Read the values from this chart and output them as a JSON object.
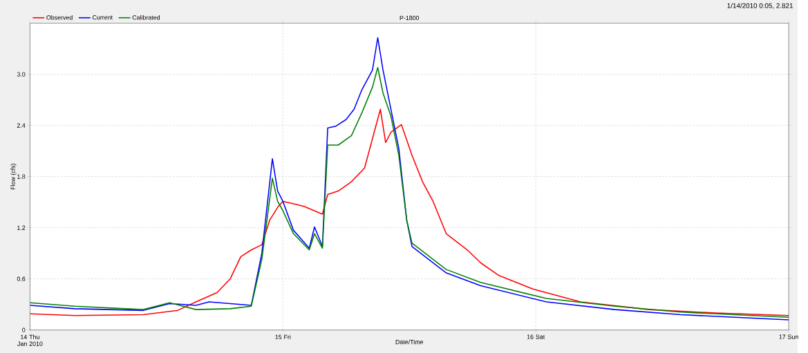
{
  "chart_data": {
    "type": "line",
    "title": "P-1800",
    "xlabel": "Date/Time",
    "ylabel": "Flow (cfs)",
    "annotations": [
      "1/14/2010 0:05, 2.821"
    ],
    "xlim": [
      "2010-01-14",
      "2010-01-17"
    ],
    "xticks": [
      {
        "value": "2010-01-14",
        "label": "14 Thu Jan 2010"
      },
      {
        "value": "2010-01-15",
        "label": "15 Fri"
      },
      {
        "value": "2010-01-16",
        "label": "16 Sat"
      },
      {
        "value": "2010-01-17",
        "label": "17 Sun"
      }
    ],
    "ylim": [
      0,
      3.6
    ],
    "yticks": [
      0,
      0.6,
      1.2,
      1.8,
      2.4,
      {
        "value": 3,
        "label": "3.0"
      }
    ],
    "grid": true,
    "legend": "top left",
    "marker": "none",
    "line_style": "solid",
    "series": [
      {
        "name": "Observed",
        "color": "#ff0000",
        "x": [
          "2010-01-14T00:00",
          "2010-01-14T04:15",
          "2010-01-14T10:45",
          "2010-01-14T14:00",
          "2010-01-14T15:45",
          "2010-01-14T17:45",
          "2010-01-14T19:00",
          "2010-01-14T20:00",
          "2010-01-14T21:00",
          "2010-01-14T22:00",
          "2010-01-14T22:45",
          "2010-01-14T23:30",
          "2010-01-15T00:00",
          "2010-01-15T00:45",
          "2010-01-15T02:00",
          "2010-01-15T03:45",
          "2010-01-15T04:15",
          "2010-01-15T05:15",
          "2010-01-15T06:30",
          "2010-01-15T07:45",
          "2010-01-15T08:45",
          "2010-01-15T09:15",
          "2010-01-15T09:45",
          "2010-01-15T10:15",
          "2010-01-15T11:15",
          "2010-01-15T12:15",
          "2010-01-15T13:15",
          "2010-01-15T14:15",
          "2010-01-15T15:30",
          "2010-01-15T17:30",
          "2010-01-15T18:45",
          "2010-01-15T20:30",
          "2010-01-15T23:45",
          "2010-01-16T04:15",
          "2010-01-16T10:45",
          "2010-01-16T17:00",
          "2010-01-17T00:00"
        ],
        "values": [
          0.19,
          0.17,
          0.18,
          0.23,
          0.33,
          0.44,
          0.6,
          0.86,
          0.94,
          1.0,
          1.29,
          1.44,
          1.51,
          1.49,
          1.45,
          1.36,
          1.59,
          1.63,
          1.74,
          1.9,
          2.36,
          2.59,
          2.2,
          2.32,
          2.41,
          2.05,
          1.74,
          1.51,
          1.13,
          0.94,
          0.79,
          0.64,
          0.48,
          0.33,
          0.24,
          0.2,
          0.17
        ]
      },
      {
        "name": "Current",
        "color": "#0000ff",
        "x": [
          "2010-01-14T00:00",
          "2010-01-14T04:15",
          "2010-01-14T10:45",
          "2010-01-14T13:15",
          "2010-01-14T15:45",
          "2010-01-14T17:00",
          "2010-01-14T19:00",
          "2010-01-14T21:00",
          "2010-01-14T22:00",
          "2010-01-14T23:00",
          "2010-01-14T23:30",
          "2010-01-15T00:00",
          "2010-01-15T01:00",
          "2010-01-15T02:30",
          "2010-01-15T03:00",
          "2010-01-15T03:45",
          "2010-01-15T04:15",
          "2010-01-15T05:00",
          "2010-01-15T06:00",
          "2010-01-15T06:45",
          "2010-01-15T07:30",
          "2010-01-15T08:30",
          "2010-01-15T09:00",
          "2010-01-15T09:30",
          "2010-01-15T10:15",
          "2010-01-15T11:00",
          "2010-01-15T11:45",
          "2010-01-15T12:15",
          "2010-01-15T15:30",
          "2010-01-15T18:45",
          "2010-01-16T01:00",
          "2010-01-16T07:30",
          "2010-01-16T13:45",
          "2010-01-17T00:00"
        ],
        "values": [
          0.29,
          0.25,
          0.23,
          0.31,
          0.29,
          0.33,
          0.31,
          0.29,
          0.9,
          2.01,
          1.63,
          1.51,
          1.17,
          0.96,
          1.21,
          0.98,
          2.37,
          2.39,
          2.47,
          2.59,
          2.82,
          3.05,
          3.43,
          3.05,
          2.59,
          2.13,
          1.29,
          0.98,
          0.67,
          0.52,
          0.33,
          0.24,
          0.18,
          0.12
        ]
      },
      {
        "name": "Calibrated",
        "color": "#008000",
        "x": [
          "2010-01-14T00:00",
          "2010-01-14T04:15",
          "2010-01-14T10:45",
          "2010-01-14T13:15",
          "2010-01-14T15:45",
          "2010-01-14T19:00",
          "2010-01-14T21:00",
          "2010-01-14T22:00",
          "2010-01-14T23:00",
          "2010-01-14T23:30",
          "2010-01-15T00:00",
          "2010-01-15T01:00",
          "2010-01-15T02:30",
          "2010-01-15T03:00",
          "2010-01-15T03:45",
          "2010-01-15T04:15",
          "2010-01-15T05:15",
          "2010-01-15T06:30",
          "2010-01-15T07:30",
          "2010-01-15T08:30",
          "2010-01-15T09:00",
          "2010-01-15T09:30",
          "2010-01-15T10:15",
          "2010-01-15T11:00",
          "2010-01-15T11:45",
          "2010-01-15T12:15",
          "2010-01-15T15:30",
          "2010-01-15T18:45",
          "2010-01-16T01:00",
          "2010-01-16T07:30",
          "2010-01-16T13:45",
          "2010-01-17T00:00"
        ],
        "values": [
          0.32,
          0.28,
          0.24,
          0.32,
          0.24,
          0.25,
          0.28,
          0.83,
          1.78,
          1.51,
          1.4,
          1.13,
          0.94,
          1.13,
          0.96,
          2.17,
          2.17,
          2.28,
          2.55,
          2.85,
          3.08,
          2.78,
          2.51,
          2.05,
          1.29,
          1.02,
          0.71,
          0.56,
          0.37,
          0.28,
          0.21,
          0.15
        ]
      }
    ]
  }
}
